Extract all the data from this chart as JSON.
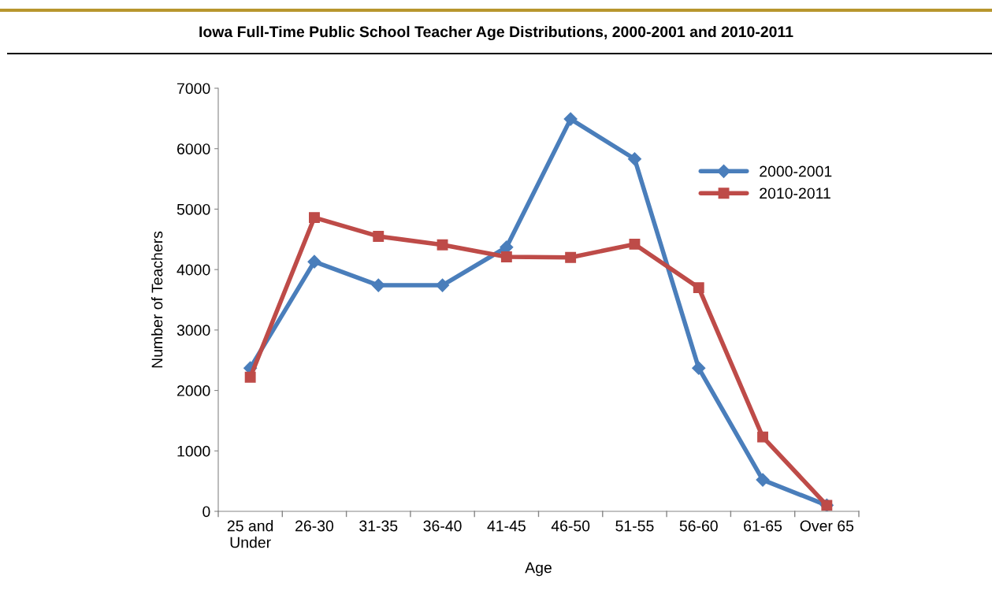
{
  "chart_data": {
    "type": "line",
    "title": "Iowa Full-Time Public School Teacher Age Distributions, 2000-2001 and 2010-2011",
    "xlabel": "Age",
    "ylabel": "Number of Teachers",
    "categories": [
      "25 and\nUnder",
      "26-30",
      "31-35",
      "36-40",
      "41-45",
      "46-50",
      "51-55",
      "56-60",
      "61-65",
      "Over 65"
    ],
    "series": [
      {
        "name": "2000-2001",
        "color": "#4a7ebb",
        "marker": "diamond",
        "values": [
          2370,
          4130,
          3740,
          3740,
          4370,
          6490,
          5830,
          2370,
          520,
          100
        ]
      },
      {
        "name": "2010-2011",
        "color": "#be4b48",
        "marker": "square",
        "values": [
          2220,
          4860,
          4550,
          4410,
          4210,
          4200,
          4420,
          3700,
          1230,
          100
        ]
      }
    ],
    "ylim": [
      0,
      7000
    ],
    "yticks": [
      0,
      1000,
      2000,
      3000,
      4000,
      5000,
      6000,
      7000
    ],
    "grid": false,
    "legend": "top right",
    "line_style": "solid"
  }
}
